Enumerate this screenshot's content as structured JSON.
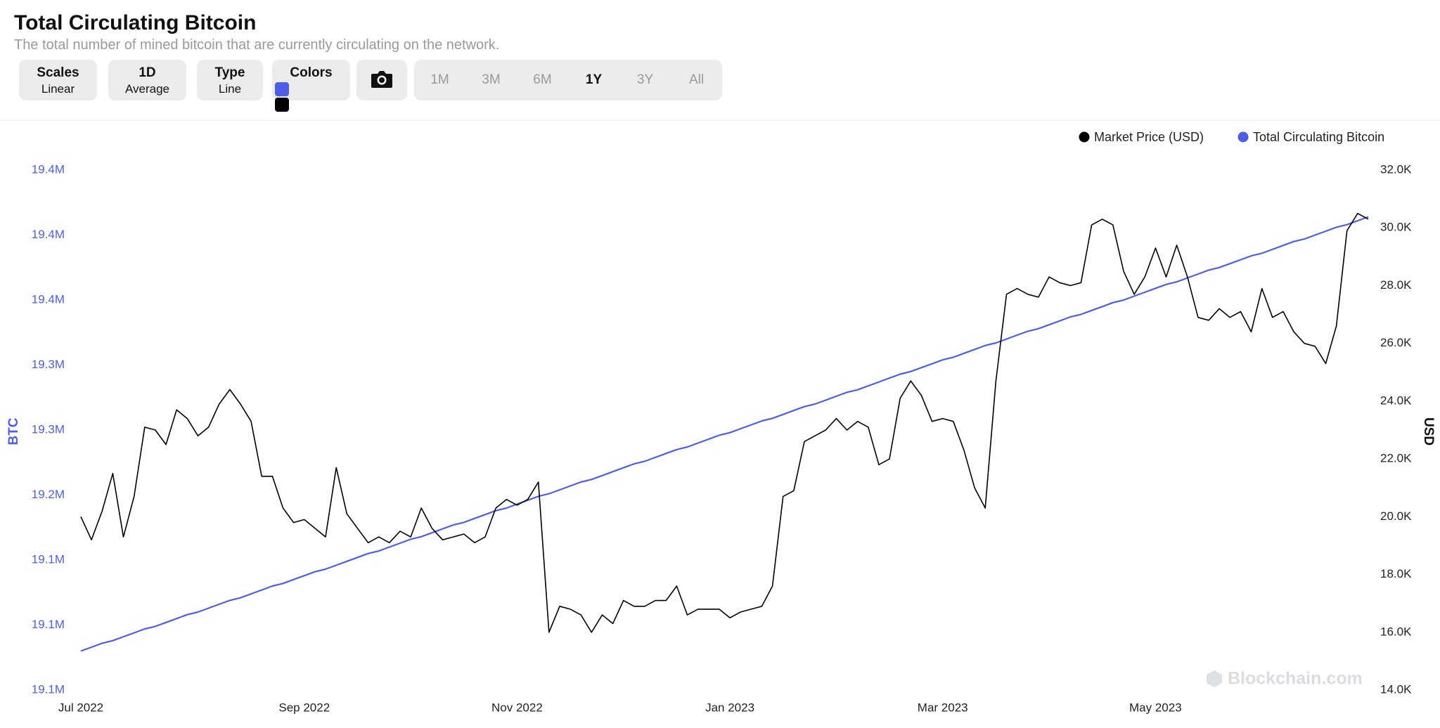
{
  "header": {
    "title": "Total Circulating Bitcoin",
    "subtitle": "The total number of mined bitcoin that are currently circulating on the network."
  },
  "controls": {
    "buttons": [
      {
        "label": "Scales",
        "value": "Linear"
      },
      {
        "label": "1D",
        "value": "Average"
      },
      {
        "label": "Type",
        "value": "Line"
      }
    ],
    "colors_label": "Colors",
    "ranges": [
      "1M",
      "3M",
      "6M",
      "1Y",
      "3Y",
      "All"
    ],
    "active_range_index": 3
  },
  "watermark": "Blockchain.com",
  "chart_data": {
    "type": "line",
    "categories": [
      "Jul 2022",
      null,
      null,
      null,
      null,
      null,
      null,
      null,
      null,
      null,
      null,
      null,
      null,
      null,
      null,
      null,
      null,
      null,
      null,
      null,
      null,
      "Sep 2022",
      null,
      null,
      null,
      null,
      null,
      null,
      null,
      null,
      null,
      null,
      null,
      null,
      null,
      null,
      null,
      null,
      null,
      null,
      null,
      "Nov 2022",
      null,
      null,
      null,
      null,
      null,
      null,
      null,
      null,
      null,
      null,
      null,
      null,
      null,
      null,
      null,
      null,
      null,
      null,
      null,
      "Jan 2023",
      null,
      null,
      null,
      null,
      null,
      null,
      null,
      null,
      null,
      null,
      null,
      null,
      null,
      null,
      null,
      null,
      null,
      null,
      null,
      "Mar 2023",
      null,
      null,
      null,
      null,
      null,
      null,
      null,
      null,
      null,
      null,
      null,
      null,
      null,
      null,
      null,
      null,
      null,
      null,
      null,
      "May 2023",
      null,
      null,
      null,
      null,
      null,
      null,
      null,
      null,
      null,
      null,
      null,
      null,
      null,
      null,
      null,
      null,
      null,
      null,
      null,
      null
    ],
    "series": [
      {
        "name": "Market Price (USD)",
        "color": "#000000",
        "axis": "y2",
        "values": [
          20.0,
          19.2,
          20.2,
          21.5,
          19.3,
          20.7,
          23.1,
          23.0,
          22.5,
          23.7,
          23.4,
          22.8,
          23.1,
          23.9,
          24.4,
          23.9,
          23.3,
          21.4,
          21.4,
          20.3,
          19.8,
          19.9,
          19.6,
          19.3,
          21.7,
          20.1,
          19.6,
          19.1,
          19.3,
          19.1,
          19.5,
          19.3,
          20.3,
          19.6,
          19.2,
          19.3,
          19.4,
          19.1,
          19.3,
          20.3,
          20.6,
          20.4,
          20.6,
          21.2,
          16.0,
          16.9,
          16.8,
          16.6,
          16.0,
          16.6,
          16.3,
          17.1,
          16.9,
          16.9,
          17.1,
          17.1,
          17.6,
          16.6,
          16.8,
          16.8,
          16.8,
          16.5,
          16.7,
          16.8,
          16.9,
          17.6,
          20.7,
          20.9,
          22.6,
          22.8,
          23.0,
          23.4,
          23.0,
          23.3,
          23.1,
          21.8,
          22.0,
          24.1,
          24.7,
          24.2,
          23.3,
          23.4,
          23.3,
          22.3,
          21.0,
          20.3,
          24.7,
          27.7,
          27.9,
          27.7,
          27.6,
          28.3,
          28.1,
          28.0,
          28.1,
          30.1,
          30.3,
          30.1,
          28.5,
          27.7,
          28.3,
          29.3,
          28.3,
          29.4,
          28.3,
          26.9,
          26.8,
          27.2,
          26.9,
          27.1,
          26.4,
          27.9,
          26.9,
          27.1,
          26.4,
          26.0,
          25.9,
          25.3,
          26.6,
          29.9,
          30.5,
          30.3
        ]
      },
      {
        "name": "Total Circulating Bitcoin",
        "color": "#4c5fe6",
        "values": [
          19.08,
          19.083,
          19.086,
          19.088,
          19.091,
          19.094,
          19.097,
          19.099,
          19.102,
          19.105,
          19.108,
          19.11,
          19.113,
          19.116,
          19.119,
          19.121,
          19.124,
          19.127,
          19.13,
          19.132,
          19.135,
          19.138,
          19.141,
          19.143,
          19.146,
          19.149,
          19.152,
          19.155,
          19.157,
          19.16,
          19.163,
          19.166,
          19.168,
          19.171,
          19.174,
          19.177,
          19.179,
          19.182,
          19.185,
          19.188,
          19.19,
          19.193,
          19.196,
          19.199,
          19.201,
          19.204,
          19.207,
          19.21,
          19.212,
          19.215,
          19.218,
          19.221,
          19.224,
          19.226,
          19.229,
          19.232,
          19.235,
          19.237,
          19.24,
          19.243,
          19.246,
          19.248,
          19.251,
          19.254,
          19.257,
          19.259,
          19.262,
          19.265,
          19.268,
          19.27,
          19.273,
          19.276,
          19.279,
          19.281,
          19.284,
          19.287,
          19.29,
          19.293,
          19.295,
          19.298,
          19.301,
          19.304,
          19.306,
          19.309,
          19.312,
          19.315,
          19.317,
          19.32,
          19.323,
          19.326,
          19.328,
          19.331,
          19.334,
          19.337,
          19.339,
          19.342,
          19.345,
          19.348,
          19.35,
          19.353,
          19.356,
          19.359,
          19.362,
          19.364,
          19.367,
          19.37,
          19.373,
          19.375,
          19.378,
          19.381,
          19.384,
          19.386,
          19.389,
          19.392,
          19.395,
          19.397,
          19.4,
          19.403,
          19.406,
          19.408,
          19.411,
          19.414
        ]
      }
    ],
    "ylabel": "BTC",
    "y2label": "USD",
    "ylim": [
      19.05,
      19.45
    ],
    "yticks": [
      {
        "value": 19.05,
        "label": "19.1M"
      },
      {
        "value": 19.1,
        "label": "19.1M"
      },
      {
        "value": 19.15,
        "label": "19.1M"
      },
      {
        "value": 19.2,
        "label": "19.2M"
      },
      {
        "value": 19.25,
        "label": "19.3M"
      },
      {
        "value": 19.3,
        "label": "19.3M"
      },
      {
        "value": 19.35,
        "label": "19.4M"
      },
      {
        "value": 19.4,
        "label": "19.4M"
      },
      {
        "value": 19.45,
        "label": "19.4M"
      }
    ],
    "y2lim": [
      14,
      32
    ],
    "y2ticks": [
      {
        "value": 14,
        "label": "14.0K"
      },
      {
        "value": 16,
        "label": "16.0K"
      },
      {
        "value": 18,
        "label": "18.0K"
      },
      {
        "value": 20,
        "label": "20.0K"
      },
      {
        "value": 22,
        "label": "22.0K"
      },
      {
        "value": 24,
        "label": "24.0K"
      },
      {
        "value": 26,
        "label": "26.0K"
      },
      {
        "value": 28,
        "label": "28.0K"
      },
      {
        "value": 30,
        "label": "30.0K"
      },
      {
        "value": 32,
        "label": "32.0K"
      }
    ]
  }
}
